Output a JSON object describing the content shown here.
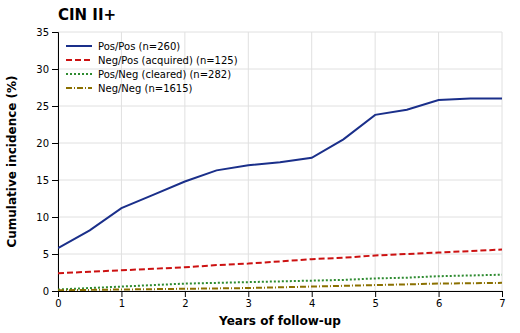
{
  "chart_data": {
    "type": "line",
    "title": "CIN II+",
    "xlabel": "Years of follow-up",
    "ylabel": "Cumulative incidence (%)",
    "x": [
      0,
      0.5,
      1.0,
      1.5,
      2.0,
      2.5,
      3.0,
      3.5,
      4.0,
      4.5,
      5.0,
      5.5,
      6.0,
      6.5,
      7.0
    ],
    "series": [
      {
        "name": "Pos/Pos (n=260)",
        "color": "#1a2f8a",
        "line_style": "solid",
        "values": [
          5.8,
          8.2,
          11.2,
          13.0,
          14.8,
          16.3,
          17.0,
          17.4,
          18.0,
          20.5,
          23.8,
          24.5,
          25.8,
          26.0,
          26.0
        ]
      },
      {
        "name": "Neg/Pos (acquired) (n=125)",
        "color": "#cc1111",
        "line_style": "dashed",
        "values": [
          2.4,
          2.6,
          2.8,
          3.0,
          3.2,
          3.5,
          3.7,
          4.0,
          4.3,
          4.5,
          4.8,
          5.0,
          5.2,
          5.4,
          5.6
        ]
      },
      {
        "name": "Pos/Neg (cleared) (n=282)",
        "color": "#2e8b30",
        "line_style": "dotted",
        "values": [
          0.2,
          0.4,
          0.6,
          0.8,
          1.0,
          1.1,
          1.2,
          1.3,
          1.4,
          1.5,
          1.7,
          1.8,
          2.0,
          2.1,
          2.2
        ]
      },
      {
        "name": "Neg/Neg (n=1615)",
        "color": "#8b7000",
        "line_style": "dashdot",
        "values": [
          0.1,
          0.15,
          0.2,
          0.25,
          0.3,
          0.35,
          0.4,
          0.5,
          0.6,
          0.7,
          0.8,
          0.9,
          1.0,
          1.05,
          1.1
        ]
      }
    ],
    "xlim": [
      0,
      7
    ],
    "ylim": [
      0,
      35
    ],
    "xticks": [
      0,
      1,
      2,
      3,
      4,
      5,
      6,
      7
    ],
    "yticks": [
      0,
      5,
      10,
      15,
      20,
      25,
      30,
      35
    ],
    "grid": true,
    "legend": "upper left"
  }
}
